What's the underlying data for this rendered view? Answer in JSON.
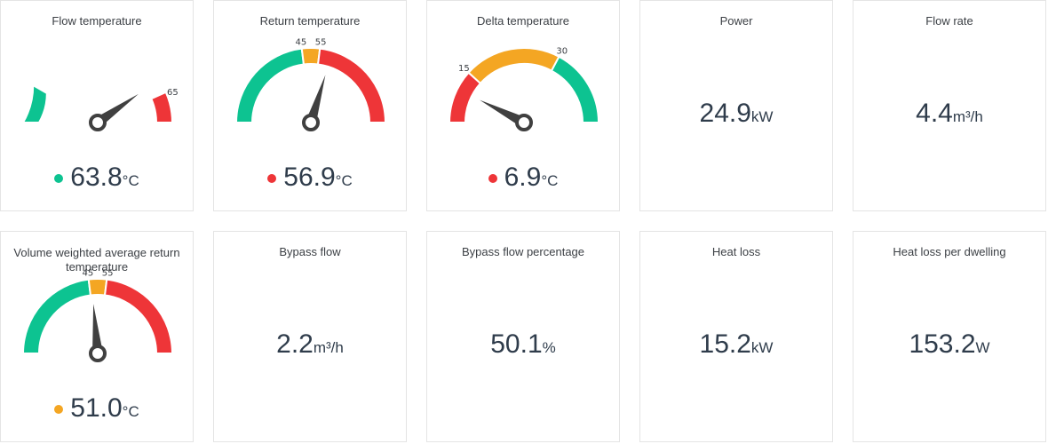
{
  "colors": {
    "green": "#0dc391",
    "amber": "#f4a623",
    "red": "#ee3538",
    "needle": "#404040"
  },
  "gauges": {
    "flow_temp": {
      "title": "Flow temperature",
      "value": "63.8",
      "unit": "°C",
      "status": "green",
      "ticks": [
        {
          "text": "65"
        }
      ]
    },
    "return_temp": {
      "title": "Return temperature",
      "value": "56.9",
      "unit": "°C",
      "status": "red",
      "ticks": [
        {
          "text": "45"
        },
        {
          "text": "55"
        }
      ]
    },
    "delta_temp": {
      "title": "Delta temperature",
      "value": "6.9",
      "unit": "°C",
      "status": "red",
      "ticks": [
        {
          "text": "15"
        },
        {
          "text": "30"
        }
      ]
    },
    "vwart": {
      "title": "Volume weighted average return temperature",
      "value": "51.0",
      "unit": "°C",
      "status": "amber",
      "ticks": [
        {
          "text": "45"
        },
        {
          "text": "55"
        }
      ]
    }
  },
  "stats": {
    "power": {
      "title": "Power",
      "value": "24.9",
      "unit": "kW"
    },
    "flow_rate": {
      "title": "Flow rate",
      "value": "4.4",
      "unit": "m³/h"
    },
    "bypass_flow": {
      "title": "Bypass flow",
      "value": "2.2",
      "unit": "m³/h"
    },
    "bypass_pct": {
      "title": "Bypass flow percentage",
      "value": "50.1",
      "unit": "%"
    },
    "heat_loss": {
      "title": "Heat loss",
      "value": "15.2",
      "unit": "kW"
    },
    "heat_loss_dwelling": {
      "title": "Heat loss per dwelling",
      "value": "153.2",
      "unit": "W"
    }
  }
}
